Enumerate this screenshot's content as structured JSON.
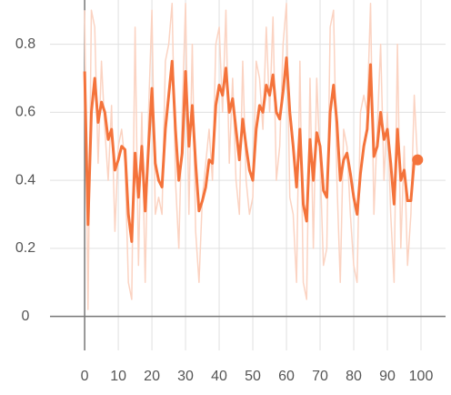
{
  "chart_data": {
    "type": "line",
    "x": [
      0,
      1,
      2,
      3,
      4,
      5,
      6,
      7,
      8,
      9,
      10,
      11,
      12,
      13,
      14,
      15,
      16,
      17,
      18,
      19,
      20,
      21,
      22,
      23,
      24,
      25,
      26,
      27,
      28,
      29,
      30,
      31,
      32,
      33,
      34,
      35,
      36,
      37,
      38,
      39,
      40,
      41,
      42,
      43,
      44,
      45,
      46,
      47,
      48,
      49,
      50,
      51,
      52,
      53,
      54,
      55,
      56,
      57,
      58,
      59,
      60,
      61,
      62,
      63,
      64,
      65,
      66,
      67,
      68,
      69,
      70,
      71,
      72,
      73,
      74,
      75,
      76,
      77,
      78,
      79,
      80,
      81,
      82,
      83,
      84,
      85,
      86,
      87,
      88,
      89,
      90,
      91,
      92,
      93,
      94,
      95,
      96,
      97,
      98,
      99
    ],
    "series": [
      {
        "color": "#fbd3c2",
        "values": [
          0.9,
          0.02,
          0.9,
          0.85,
          0.45,
          0.75,
          0.55,
          0.4,
          0.62,
          0.25,
          0.5,
          0.55,
          0.45,
          0.1,
          0.05,
          0.85,
          0.15,
          0.6,
          0.1,
          0.6,
          0.9,
          0.3,
          0.35,
          0.3,
          0.75,
          0.8,
          0.92,
          0.4,
          0.2,
          0.6,
          0.92,
          0.3,
          0.8,
          0.25,
          0.1,
          0.35,
          0.45,
          0.55,
          0.4,
          0.8,
          0.85,
          0.6,
          0.9,
          0.45,
          0.7,
          0.4,
          0.3,
          0.75,
          0.4,
          0.3,
          0.35,
          0.75,
          0.7,
          0.55,
          0.85,
          0.6,
          0.88,
          0.4,
          0.5,
          0.8,
          0.92,
          0.35,
          0.3,
          0.1,
          0.75,
          0.1,
          0.05,
          0.7,
          0.2,
          0.7,
          0.45,
          0.15,
          0.2,
          0.85,
          0.9,
          0.4,
          0.1,
          0.55,
          0.5,
          0.3,
          0.15,
          0.1,
          0.6,
          0.65,
          0.6,
          0.92,
          0.3,
          0.55,
          0.8,
          0.4,
          0.6,
          0.3,
          0.1,
          0.8,
          0.2,
          0.5,
          0.15,
          0.3,
          0.65,
          0.45
        ]
      },
      {
        "color": "#f4733b",
        "values": [
          0.72,
          0.27,
          0.6,
          0.7,
          0.57,
          0.63,
          0.6,
          0.52,
          0.55,
          0.43,
          0.46,
          0.5,
          0.49,
          0.3,
          0.22,
          0.48,
          0.35,
          0.5,
          0.31,
          0.5,
          0.67,
          0.45,
          0.4,
          0.38,
          0.55,
          0.65,
          0.75,
          0.55,
          0.4,
          0.48,
          0.72,
          0.5,
          0.62,
          0.45,
          0.31,
          0.34,
          0.38,
          0.46,
          0.45,
          0.62,
          0.68,
          0.65,
          0.73,
          0.6,
          0.64,
          0.55,
          0.46,
          0.58,
          0.5,
          0.43,
          0.4,
          0.55,
          0.62,
          0.6,
          0.68,
          0.65,
          0.71,
          0.6,
          0.58,
          0.66,
          0.76,
          0.6,
          0.5,
          0.38,
          0.55,
          0.33,
          0.28,
          0.52,
          0.4,
          0.54,
          0.5,
          0.37,
          0.35,
          0.6,
          0.68,
          0.57,
          0.4,
          0.46,
          0.48,
          0.42,
          0.35,
          0.3,
          0.42,
          0.5,
          0.55,
          0.74,
          0.47,
          0.5,
          0.6,
          0.52,
          0.55,
          0.45,
          0.33,
          0.55,
          0.4,
          0.43,
          0.34,
          0.34,
          0.46,
          0.46
        ]
      }
    ],
    "xlim": [
      -10.3,
      107.3
    ],
    "xticks": [
      0,
      10,
      20,
      30,
      40,
      50,
      60,
      70,
      80,
      90,
      100
    ],
    "ylim": [
      -0.1,
      0.93
    ],
    "yticks": [
      0,
      0.2,
      0.4,
      0.6,
      0.8
    ],
    "grid": true
  }
}
